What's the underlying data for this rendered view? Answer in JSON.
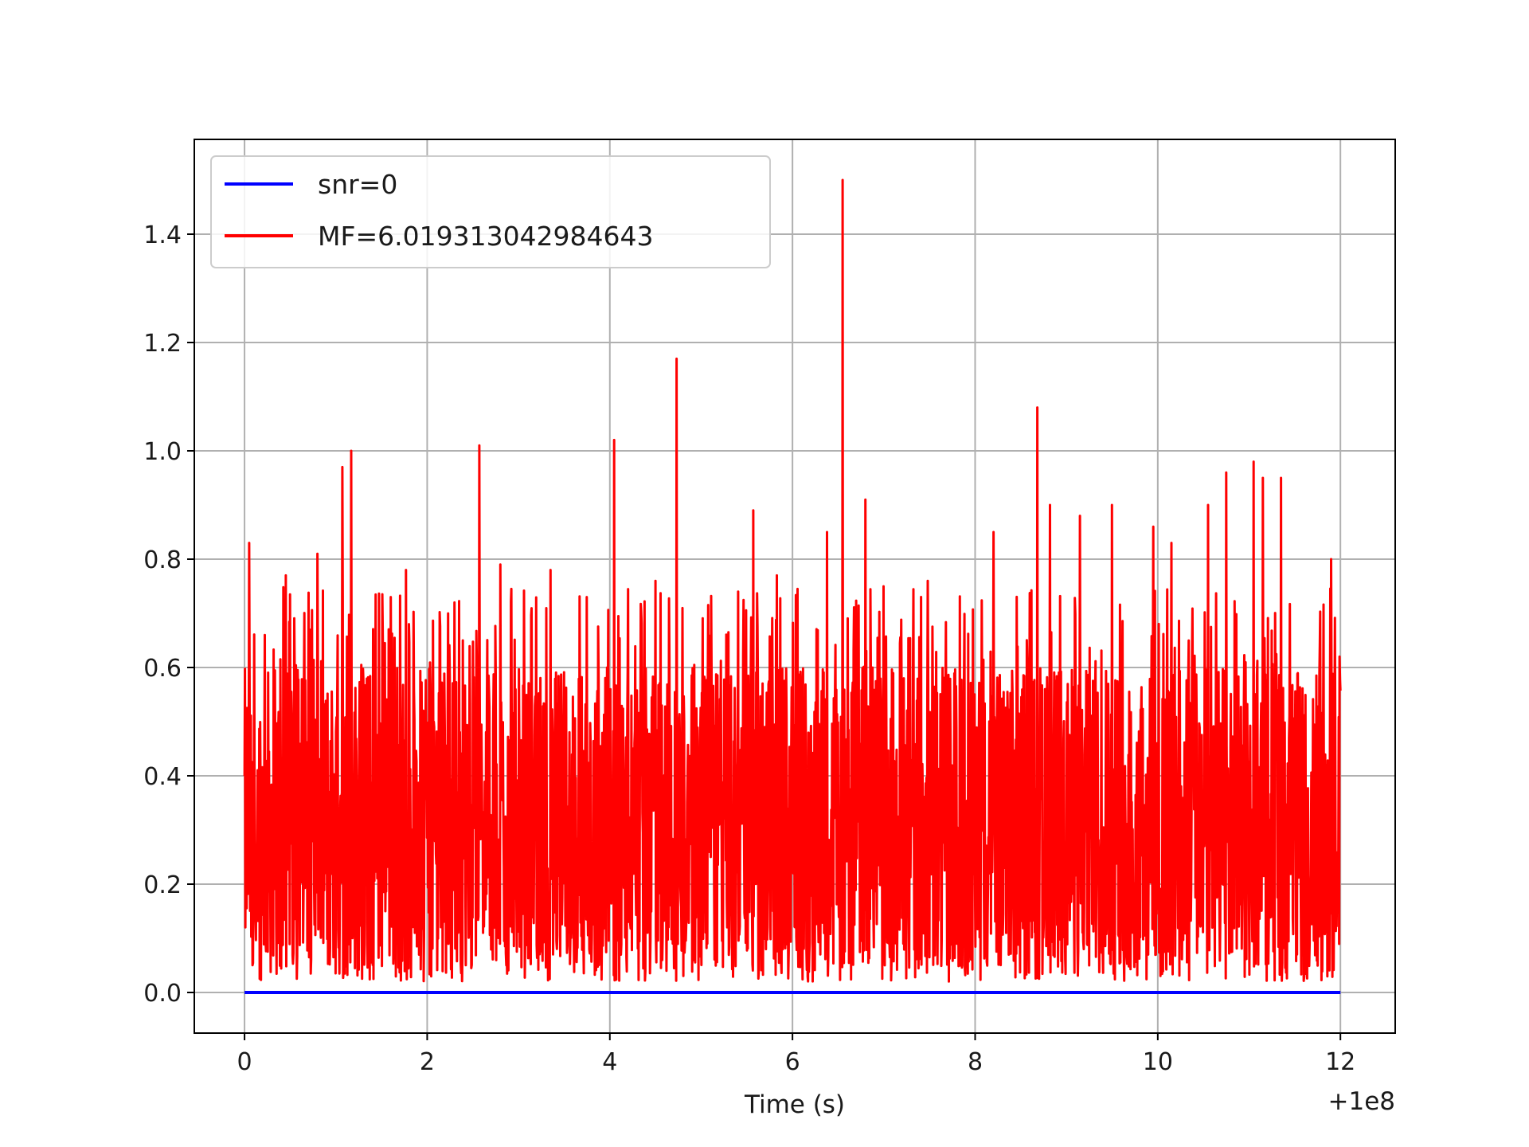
{
  "chart_data": {
    "type": "line",
    "title": "",
    "xlabel": "Time (s)",
    "ylabel": "",
    "x_offset_label": "+1e8",
    "xlim": [
      -0.55,
      12.6
    ],
    "ylim": [
      -0.075,
      1.575
    ],
    "x_ticks": [
      0,
      2,
      4,
      6,
      8,
      10,
      12
    ],
    "x_tick_labels": [
      "0",
      "2",
      "4",
      "6",
      "8",
      "10",
      "12"
    ],
    "y_ticks": [
      0.0,
      0.2,
      0.4,
      0.6,
      0.8,
      1.0,
      1.2,
      1.4
    ],
    "y_tick_labels": [
      "0.0",
      "0.2",
      "0.4",
      "0.6",
      "0.8",
      "1.0",
      "1.2",
      "1.4"
    ],
    "grid": true,
    "legend_position": "upper-left",
    "series": [
      {
        "name": "snr=0",
        "color": "#0000ff",
        "x": [
          0,
          12
        ],
        "y": [
          0,
          0
        ]
      },
      {
        "name": "MF=6.019313042984643",
        "color": "#ff0000",
        "noise_range_x": [
          0,
          12
        ],
        "baseline_min": 0.02,
        "baseline_max": 0.6,
        "peaks": [
          {
            "x": 0.05,
            "y": 0.83
          },
          {
            "x": 0.22,
            "y": 0.66
          },
          {
            "x": 0.45,
            "y": 0.77
          },
          {
            "x": 0.8,
            "y": 0.81
          },
          {
            "x": 1.07,
            "y": 0.97
          },
          {
            "x": 1.17,
            "y": 1.0
          },
          {
            "x": 1.6,
            "y": 0.73
          },
          {
            "x": 1.77,
            "y": 0.78
          },
          {
            "x": 2.3,
            "y": 0.72
          },
          {
            "x": 2.57,
            "y": 1.01
          },
          {
            "x": 2.8,
            "y": 0.79
          },
          {
            "x": 3.35,
            "y": 0.78
          },
          {
            "x": 3.75,
            "y": 0.73
          },
          {
            "x": 4.05,
            "y": 1.02
          },
          {
            "x": 4.5,
            "y": 0.76
          },
          {
            "x": 4.73,
            "y": 1.17
          },
          {
            "x": 5.57,
            "y": 0.89
          },
          {
            "x": 5.83,
            "y": 0.77
          },
          {
            "x": 6.38,
            "y": 0.85
          },
          {
            "x": 6.55,
            "y": 1.5
          },
          {
            "x": 6.8,
            "y": 0.91
          },
          {
            "x": 7.48,
            "y": 0.76
          },
          {
            "x": 8.2,
            "y": 0.85
          },
          {
            "x": 8.68,
            "y": 1.08
          },
          {
            "x": 8.82,
            "y": 0.9
          },
          {
            "x": 9.15,
            "y": 0.88
          },
          {
            "x": 9.5,
            "y": 0.9
          },
          {
            "x": 9.95,
            "y": 0.86
          },
          {
            "x": 10.15,
            "y": 0.83
          },
          {
            "x": 10.55,
            "y": 0.9
          },
          {
            "x": 10.75,
            "y": 0.96
          },
          {
            "x": 11.05,
            "y": 0.98
          },
          {
            "x": 11.15,
            "y": 0.95
          },
          {
            "x": 11.35,
            "y": 0.95
          },
          {
            "x": 11.9,
            "y": 0.8
          },
          {
            "x": 11.99,
            "y": 0.62
          }
        ]
      }
    ]
  }
}
